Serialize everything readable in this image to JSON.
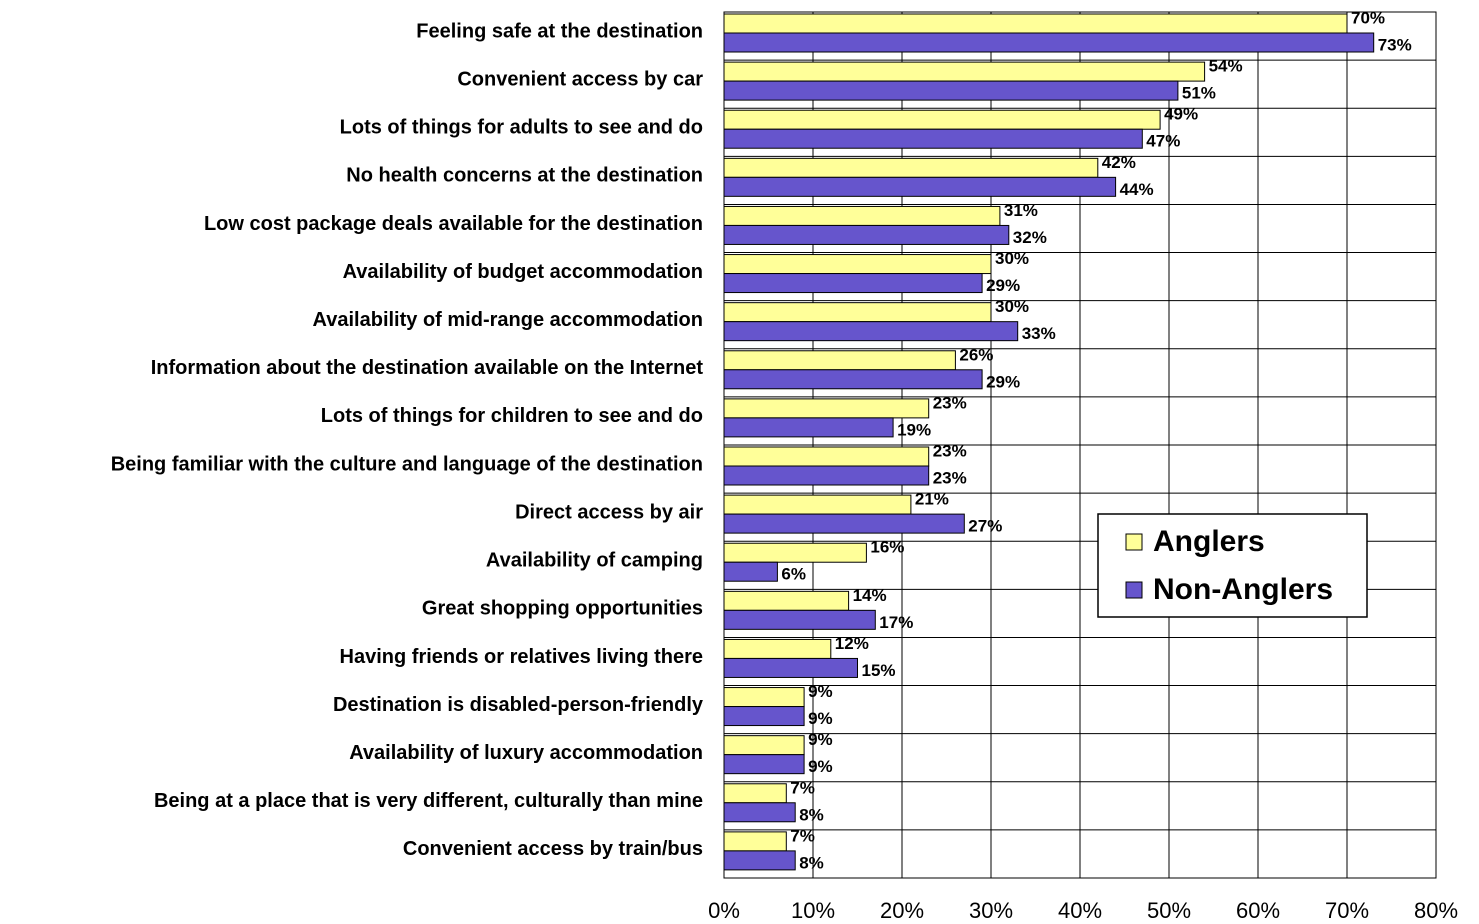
{
  "chart_data": {
    "type": "hbar",
    "categories": [
      "Feeling safe at the destination",
      "Convenient access by car",
      "Lots of things for adults to see and do",
      "No health concerns at the destination",
      "Low cost package deals available for the destination",
      "Availability of budget accommodation",
      "Availability of mid-range accommodation",
      "Information about the destination available on the Internet",
      "Lots of things for children to see and do",
      "Being familiar with the culture and language of the destination",
      "Direct access by air",
      "Availability of camping",
      "Great shopping opportunities",
      "Having friends or relatives living there",
      "Destination is disabled-person-friendly",
      "Availability of luxury accommodation",
      "Being at a place that is very different, culturally than mine",
      "Convenient access by train/bus"
    ],
    "series": [
      {
        "name": "Anglers",
        "color": "#ffff99",
        "values": [
          70,
          54,
          49,
          42,
          31,
          30,
          30,
          26,
          23,
          23,
          21,
          16,
          14,
          12,
          9,
          9,
          7,
          7
        ],
        "value_labels": [
          "70%",
          "54%",
          "49%",
          "42%",
          "31%",
          "30%",
          "30%",
          "26%",
          "23%",
          "23%",
          "21%",
          "16%",
          "14%",
          "12%",
          "9%",
          "9%",
          "7%",
          "7%"
        ]
      },
      {
        "name": "Non-Anglers",
        "color": "#6655cc",
        "values": [
          73,
          51,
          47,
          44,
          32,
          29,
          33,
          29,
          19,
          23,
          27,
          6,
          17,
          15,
          9,
          9,
          8,
          8
        ],
        "value_labels": [
          "73%",
          "51%",
          "47%",
          "44%",
          "32%",
          "29%",
          "33%",
          "29%",
          "19%",
          "23%",
          "27%",
          "6%",
          "17%",
          "15%",
          "9%",
          "9%",
          "8%",
          "8%"
        ]
      }
    ],
    "xlim": [
      0,
      80
    ],
    "xticks": [
      {
        "value": 0,
        "label": "0%"
      },
      {
        "value": 10,
        "label": "10%"
      },
      {
        "value": 20,
        "label": "20%"
      },
      {
        "value": 30,
        "label": "30%"
      },
      {
        "value": 40,
        "label": "40%"
      },
      {
        "value": 50,
        "label": "50%"
      },
      {
        "value": 60,
        "label": "60%"
      },
      {
        "value": 70,
        "label": "70%"
      },
      {
        "value": 80,
        "label": "80%"
      }
    ],
    "grid": true,
    "legend": "right"
  }
}
